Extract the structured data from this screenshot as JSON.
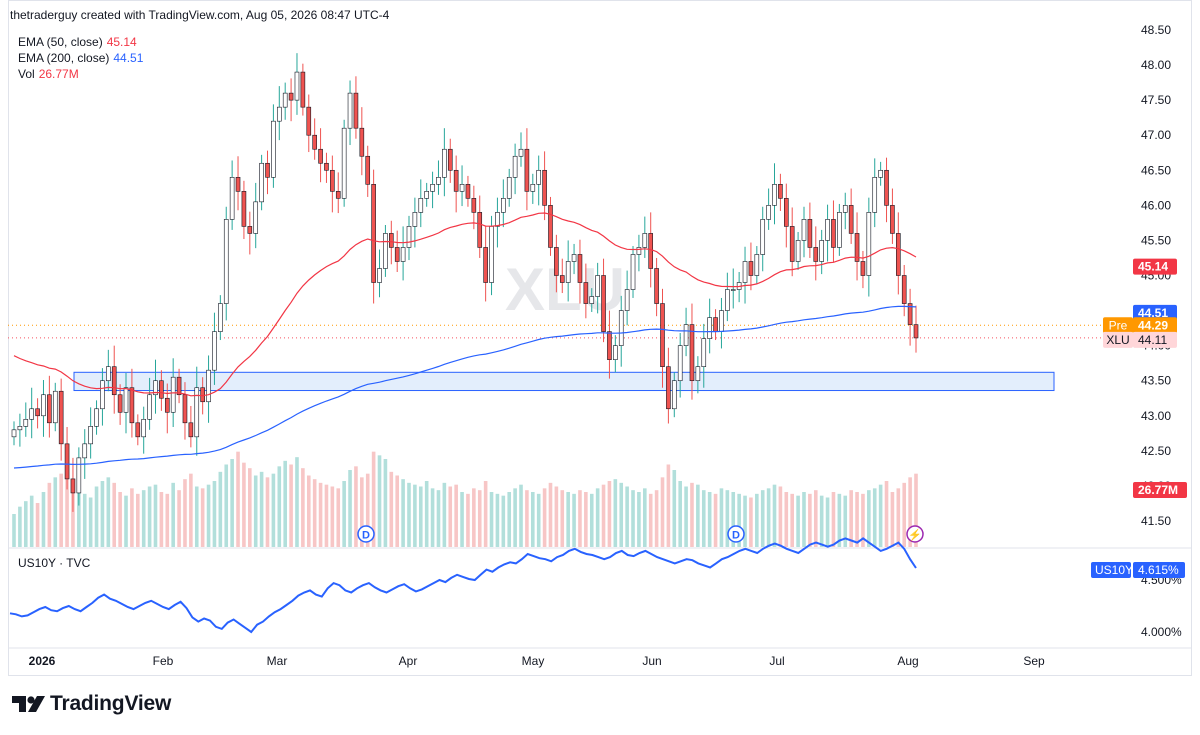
{
  "header": {
    "credit": "thetraderguy created with TradingView.com, Aug 05, 2026 08:47 UTC-4"
  },
  "legend": {
    "ema50": {
      "label": "EMA (50, close)",
      "value": "45.14",
      "color": "#f23645"
    },
    "ema200": {
      "label": "EMA (200, close)",
      "value": "44.51",
      "color": "#2962ff"
    },
    "vol": {
      "label": "Vol",
      "value": "26.77M",
      "color": "#f23645"
    }
  },
  "brand": {
    "name": "TradingView"
  },
  "chart_data": [
    {
      "type": "candlestick",
      "symbol_watermark": "XLU",
      "y_axis": {
        "ticks": [
          "48.50",
          "48.00",
          "47.50",
          "47.00",
          "46.50",
          "46.00",
          "45.50",
          "45.00",
          "44.50",
          "44.00",
          "43.50",
          "43.00",
          "42.50",
          "42.00",
          "41.50"
        ]
      },
      "x_axis": {
        "ticks": [
          "2026",
          "Feb",
          "Mar",
          "Apr",
          "May",
          "Jun",
          "Jul",
          "Aug",
          "Sep"
        ]
      },
      "price_labels": [
        {
          "text": "45.14",
          "color": "#f23645",
          "value": 45.14
        },
        {
          "text": "44.51",
          "color": "#2962ff",
          "value": 44.51
        },
        {
          "prefix": "Pre",
          "text": "44.29",
          "color": "#ff9800",
          "value": 44.29
        },
        {
          "prefix": "XLU",
          "text": "44.11",
          "color": "#f7525f",
          "value": 44.11
        },
        {
          "text": "26.77M",
          "color": "#f23645"
        }
      ],
      "support_zone": {
        "low": 43.36,
        "high": 43.62
      },
      "dividend_markers": [
        "D",
        "D"
      ],
      "event_marker": "⚡",
      "colors": {
        "up": "#26a69a",
        "down": "#ef5350",
        "volume_up": "#b2dfdb",
        "volume_down": "#f7c6c6",
        "zone_fill": "#e3eefc",
        "zone_border": "#2962ff"
      },
      "closes": [
        42.8,
        42.85,
        42.95,
        43.1,
        43.0,
        43.3,
        42.9,
        43.35,
        42.6,
        42.1,
        41.9,
        42.4,
        42.6,
        42.85,
        43.1,
        43.5,
        43.7,
        43.3,
        43.05,
        43.4,
        42.9,
        42.7,
        42.95,
        43.3,
        43.5,
        43.25,
        43.05,
        43.55,
        43.3,
        42.9,
        42.7,
        43.4,
        43.2,
        43.65,
        44.2,
        44.6,
        45.8,
        46.4,
        46.2,
        45.7,
        45.6,
        46.05,
        46.6,
        46.4,
        47.2,
        47.4,
        47.6,
        47.5,
        47.9,
        47.4,
        47.0,
        46.8,
        46.6,
        46.5,
        46.2,
        46.1,
        47.1,
        47.6,
        47.1,
        46.7,
        46.3,
        44.9,
        45.1,
        45.6,
        45.4,
        45.2,
        45.4,
        45.7,
        45.9,
        46.1,
        46.2,
        46.3,
        46.4,
        46.8,
        46.5,
        46.2,
        46.3,
        46.1,
        45.9,
        45.4,
        44.9,
        45.7,
        45.9,
        46.1,
        46.4,
        46.7,
        46.8,
        46.2,
        46.3,
        46.5,
        46.0,
        45.4,
        45.0,
        44.9,
        45.2,
        45.3,
        44.9,
        44.6,
        44.7,
        45.0,
        44.2,
        43.8,
        44.0,
        44.5,
        44.8,
        45.3,
        45.4,
        45.6,
        45.1,
        44.6,
        43.7,
        43.1,
        43.5,
        44.0,
        44.3,
        43.5,
        43.7,
        44.1,
        44.4,
        44.2,
        44.5,
        44.8,
        44.8,
        44.9,
        45.2,
        45.0,
        45.3,
        45.8,
        46.0,
        46.3,
        46.1,
        45.7,
        45.2,
        45.5,
        45.8,
        45.4,
        45.2,
        45.5,
        45.8,
        45.4,
        45.9,
        46.0,
        45.6,
        45.2,
        45.0,
        45.9,
        46.4,
        46.5,
        46.0,
        45.6,
        45.0,
        44.6,
        44.3,
        44.11
      ],
      "volumes": [
        18,
        22,
        25,
        28,
        24,
        30,
        35,
        38,
        40,
        42,
        34,
        31,
        29,
        27,
        33,
        36,
        38,
        35,
        30,
        28,
        32,
        29,
        31,
        33,
        34,
        30,
        29,
        35,
        31,
        37,
        40,
        33,
        32,
        34,
        36,
        41,
        45,
        48,
        52,
        46,
        43,
        39,
        41,
        38,
        40,
        44,
        47,
        45,
        49,
        43,
        39,
        37,
        35,
        34,
        33,
        32,
        36,
        42,
        44,
        38,
        40,
        52,
        50,
        48,
        41,
        39,
        37,
        35,
        34,
        33,
        36,
        32,
        31,
        35,
        33,
        34,
        30,
        29,
        32,
        31,
        36,
        30,
        29,
        28,
        30,
        32,
        34,
        31,
        30,
        29,
        32,
        35,
        33,
        31,
        30,
        29,
        31,
        30,
        29,
        32,
        34,
        36,
        37,
        35,
        33,
        31,
        30,
        32,
        29,
        31,
        38,
        45,
        42,
        36,
        33,
        35,
        34,
        31,
        30,
        29,
        32,
        31,
        30,
        29,
        28,
        27,
        29,
        31,
        32,
        34,
        33,
        30,
        29,
        28,
        30,
        29,
        31,
        28,
        27,
        30,
        29,
        28,
        31,
        30,
        29,
        31,
        32,
        34,
        36,
        30,
        32,
        35,
        38,
        40
      ]
    },
    {
      "type": "line",
      "series": [
        {
          "name": "US10Y · TVC",
          "short": "US10Y",
          "value": "4.615%",
          "color": "#2962ff"
        }
      ],
      "y_axis": {
        "ticks": [
          "4.500%",
          "4.000%"
        ]
      },
      "values": [
        4.18,
        4.17,
        4.15,
        4.16,
        4.19,
        4.22,
        4.24,
        4.21,
        4.2,
        4.23,
        4.25,
        4.22,
        4.2,
        4.24,
        4.28,
        4.33,
        4.36,
        4.32,
        4.3,
        4.27,
        4.24,
        4.22,
        4.25,
        4.28,
        4.3,
        4.27,
        4.24,
        4.22,
        4.26,
        4.29,
        4.23,
        4.14,
        4.1,
        4.13,
        4.11,
        4.05,
        4.03,
        4.09,
        4.12,
        4.08,
        4.04,
        4.0,
        4.07,
        4.1,
        4.15,
        4.19,
        4.22,
        4.26,
        4.3,
        4.35,
        4.38,
        4.4,
        4.36,
        4.34,
        4.42,
        4.47,
        4.45,
        4.4,
        4.38,
        4.42,
        4.45,
        4.47,
        4.43,
        4.4,
        4.38,
        4.41,
        4.44,
        4.46,
        4.42,
        4.39,
        4.41,
        4.44,
        4.47,
        4.5,
        4.48,
        4.52,
        4.55,
        4.53,
        4.51,
        4.5,
        4.55,
        4.6,
        4.58,
        4.62,
        4.65,
        4.67,
        4.66,
        4.7,
        4.75,
        4.73,
        4.71,
        4.7,
        4.68,
        4.72,
        4.74,
        4.78,
        4.8,
        4.77,
        4.75,
        4.74,
        4.72,
        4.7,
        4.72,
        4.76,
        4.78,
        4.74,
        4.73,
        4.76,
        4.78,
        4.75,
        4.72,
        4.7,
        4.68,
        4.66,
        4.68,
        4.7,
        4.69,
        4.66,
        4.64,
        4.62,
        4.66,
        4.7,
        4.72,
        4.75,
        4.78,
        4.8,
        4.78,
        4.76,
        4.8,
        4.83,
        4.85,
        4.83,
        4.8,
        4.78,
        4.76,
        4.8,
        4.84,
        4.86,
        4.84,
        4.82,
        4.84,
        4.88,
        4.9,
        4.88,
        4.86,
        4.9,
        4.86,
        4.82,
        4.78,
        4.8,
        4.83,
        4.86,
        4.8,
        4.7,
        4.615
      ]
    }
  ]
}
